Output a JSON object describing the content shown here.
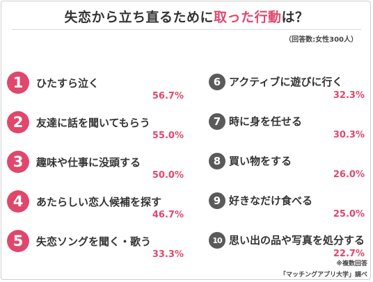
{
  "chart_data": {
    "type": "table",
    "title_pre": "失恋から立ち直るために",
    "title_hl": "取った行動",
    "title_post": "は？",
    "note": "（回答数:女性300人）",
    "footnote": "※複数回答",
    "source": "「マッチングアプリ大学」調べ",
    "unit": "%",
    "items": [
      {
        "rank": "1",
        "label": "ひたすら泣く",
        "value": 56.7,
        "value_label": "56.7%"
      },
      {
        "rank": "2",
        "label": "友達に話を聞いてもらう",
        "value": 55.0,
        "value_label": "55.0%"
      },
      {
        "rank": "3",
        "label": "趣味や仕事に没頭する",
        "value": 50.0,
        "value_label": "50.0%"
      },
      {
        "rank": "4",
        "label": "あたらしい恋人候補を探す",
        "value": 46.7,
        "value_label": "46.7%"
      },
      {
        "rank": "5",
        "label": "失恋ソングを聞く・歌う",
        "value": 33.3,
        "value_label": "33.3%"
      },
      {
        "rank": "6",
        "label": "アクティブに遊びに行く",
        "value": 32.3,
        "value_label": "32.3%"
      },
      {
        "rank": "7",
        "label": "時に身を任せる",
        "value": 30.3,
        "value_label": "30.3%"
      },
      {
        "rank": "8",
        "label": "買い物をする",
        "value": 26.0,
        "value_label": "26.0%"
      },
      {
        "rank": "9",
        "label": "好きなだけ食べる",
        "value": 25.0,
        "value_label": "25.0%"
      },
      {
        "rank": "10",
        "label": "思い出の品や写真を処分する",
        "value": 22.7,
        "value_label": "22.7%"
      }
    ],
    "colors": {
      "accent": "#e0476b",
      "secondary": "#5a5a5a",
      "text": "#333333"
    }
  }
}
